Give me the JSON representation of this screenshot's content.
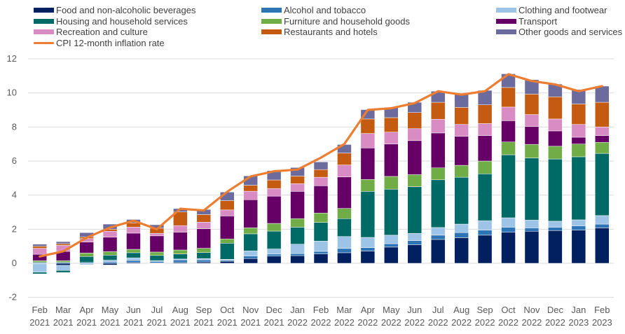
{
  "chart_data": {
    "type": "bar",
    "stacked": true,
    "title": "",
    "xlabel": "",
    "ylabel": "",
    "ylim": [
      -2,
      12
    ],
    "yticks": [
      -2,
      0,
      2,
      4,
      6,
      8,
      10,
      12
    ],
    "grid": true,
    "legend_position": "top",
    "categories": [
      [
        "Feb",
        "2021"
      ],
      [
        "Mar",
        "2021"
      ],
      [
        "Apr",
        "2021"
      ],
      [
        "May",
        "2021"
      ],
      [
        "Jun",
        "2021"
      ],
      [
        "Jul",
        "2021"
      ],
      [
        "Aug",
        "2021"
      ],
      [
        "Sep",
        "2021"
      ],
      [
        "Oct",
        "2021"
      ],
      [
        "Nov",
        "2021"
      ],
      [
        "Dec",
        "2021"
      ],
      [
        "Jan",
        "2022"
      ],
      [
        "Feb",
        "2022"
      ],
      [
        "Mar",
        "2022"
      ],
      [
        "Apr",
        "2022"
      ],
      [
        "May",
        "2022"
      ],
      [
        "Jun",
        "2022"
      ],
      [
        "Jul",
        "2022"
      ],
      [
        "Aug",
        "2022"
      ],
      [
        "Sep",
        "2022"
      ],
      [
        "Oct",
        "2022"
      ],
      [
        "Nov",
        "2022"
      ],
      [
        "Dec",
        "2022"
      ],
      [
        "Jan",
        "2023"
      ],
      [
        "Feb",
        "2023"
      ]
    ],
    "series": [
      {
        "name": "Food and non-alcoholic beverages",
        "color": "#002060",
        "values": [
          -0.02,
          -0.12,
          -0.03,
          -0.1,
          0.05,
          0.03,
          0.05,
          0.08,
          0.12,
          0.28,
          0.42,
          0.45,
          0.55,
          0.62,
          0.72,
          0.95,
          1.08,
          1.4,
          1.5,
          1.65,
          1.82,
          1.88,
          1.92,
          1.95,
          2.08
        ]
      },
      {
        "name": "Alcohol and tobacco",
        "color": "#2E75B6",
        "values": [
          0.05,
          0.05,
          0.05,
          0.08,
          0.12,
          0.08,
          0.15,
          0.12,
          0.06,
          0.15,
          0.12,
          0.12,
          0.15,
          0.25,
          0.2,
          0.2,
          0.25,
          0.25,
          0.3,
          0.3,
          0.3,
          0.2,
          0.2,
          0.25,
          0.22
        ]
      },
      {
        "name": "Clothing and footwear",
        "color": "#9DC3E6",
        "values": [
          -0.5,
          -0.3,
          -0.06,
          0.1,
          0.15,
          0.05,
          0.05,
          0.08,
          0.05,
          0.3,
          0.3,
          0.55,
          0.6,
          0.7,
          0.6,
          0.5,
          0.42,
          0.45,
          0.5,
          0.55,
          0.55,
          0.45,
          0.35,
          0.35,
          0.5
        ]
      },
      {
        "name": "Housing and household services",
        "color": "#006A66",
        "values": [
          -0.1,
          -0.12,
          0.35,
          0.3,
          0.3,
          0.3,
          0.3,
          0.35,
          0.95,
          1.0,
          1.05,
          1.0,
          1.1,
          1.05,
          2.7,
          2.7,
          2.75,
          2.8,
          2.75,
          2.75,
          3.7,
          3.65,
          3.65,
          3.7,
          3.65
        ]
      },
      {
        "name": "Furniture and household goods",
        "color": "#70AD47",
        "values": [
          0.1,
          0.1,
          0.2,
          0.2,
          0.2,
          0.2,
          0.23,
          0.25,
          0.25,
          0.35,
          0.45,
          0.5,
          0.55,
          0.6,
          0.7,
          0.75,
          0.7,
          0.7,
          0.7,
          0.75,
          0.75,
          0.8,
          0.75,
          0.75,
          0.65
        ]
      },
      {
        "name": "Transport",
        "color": "#660066",
        "values": [
          0.38,
          0.55,
          0.65,
          0.85,
          0.95,
          0.95,
          1.05,
          1.15,
          1.35,
          1.65,
          1.6,
          1.6,
          1.6,
          1.85,
          1.85,
          1.9,
          2.0,
          2.05,
          1.7,
          1.5,
          1.25,
          1.05,
          0.9,
          0.4,
          0.4
        ]
      },
      {
        "name": "Recreation and culture",
        "color": "#D98BC4",
        "values": [
          0.35,
          0.35,
          0.2,
          0.35,
          0.35,
          0.15,
          0.38,
          0.38,
          0.35,
          0.5,
          0.45,
          0.45,
          0.5,
          0.7,
          0.85,
          0.7,
          0.7,
          0.8,
          0.7,
          0.7,
          0.8,
          0.7,
          0.7,
          0.75,
          0.5
        ]
      },
      {
        "name": "Restaurants and hotels",
        "color": "#C55A11",
        "values": [
          0.12,
          0.1,
          0.1,
          0.12,
          0.25,
          0.3,
          0.8,
          0.45,
          0.55,
          0.35,
          0.5,
          0.45,
          0.45,
          0.7,
          0.85,
          0.85,
          0.95,
          1.0,
          1.0,
          1.1,
          1.15,
          1.2,
          1.3,
          1.2,
          1.45
        ]
      },
      {
        "name": "Other goods and services",
        "color": "#6B6B9E",
        "values": [
          0.12,
          0.12,
          0.25,
          0.3,
          0.2,
          0.2,
          0.2,
          0.3,
          0.5,
          0.55,
          0.55,
          0.5,
          0.45,
          0.5,
          0.55,
          0.6,
          0.6,
          0.65,
          0.75,
          0.85,
          0.8,
          0.85,
          0.75,
          0.85,
          0.95
        ]
      }
    ],
    "line_series": {
      "name": "CPI 12-month inflation rate",
      "color": "#ED7D31",
      "values": [
        0.4,
        0.7,
        1.5,
        2.1,
        2.5,
        2.0,
        3.2,
        3.1,
        4.2,
        5.1,
        5.4,
        5.5,
        6.2,
        7.0,
        9.0,
        9.1,
        9.4,
        10.1,
        9.9,
        10.1,
        11.1,
        10.7,
        10.5,
        10.1,
        10.4
      ]
    }
  }
}
